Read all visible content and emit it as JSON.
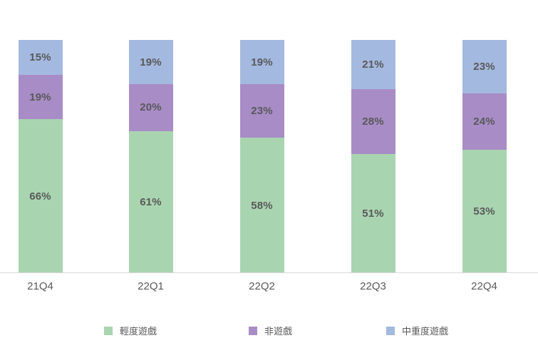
{
  "chart_data": {
    "type": "bar",
    "stacked": true,
    "title": "",
    "xlabel": "",
    "ylabel": "",
    "ylim": [
      0,
      100
    ],
    "grid": false,
    "legend_position": "bottom",
    "value_suffix": "%",
    "categories": [
      "21Q4",
      "22Q1",
      "22Q2",
      "22Q3",
      "22Q4"
    ],
    "series": [
      {
        "name": "輕度遊戲",
        "color": "#a9d4b0",
        "values": [
          66,
          61,
          58,
          51,
          53
        ]
      },
      {
        "name": "非遊戲",
        "color": "#a88cc6",
        "values": [
          19,
          20,
          23,
          28,
          24
        ]
      },
      {
        "name": "中重度遊戲",
        "color": "#a4b9e0",
        "values": [
          15,
          19,
          19,
          21,
          23
        ]
      }
    ]
  },
  "colors": {
    "background": "#ffffff",
    "bar_label_text": "#595959",
    "axis_label_text": "#595959",
    "axis_line": "#d9d9d9",
    "legend_text": "#595959"
  }
}
